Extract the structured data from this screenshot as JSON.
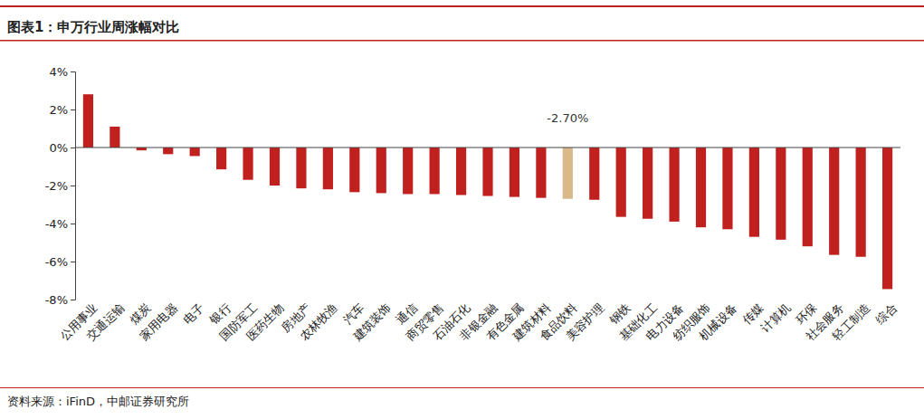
{
  "chart_data": {
    "type": "bar",
    "title": "图表1：申万行业周涨幅对比",
    "source": "资料来源：iFinD，中邮证券研究所",
    "categories": [
      "公用事业",
      "交通运输",
      "煤炭",
      "家用电器",
      "电子",
      "银行",
      "国防军工",
      "医药生物",
      "房地产",
      "农林牧渔",
      "汽车",
      "建筑装饰",
      "通信",
      "商贸零售",
      "石油石化",
      "非银金融",
      "有色金属",
      "建筑材料",
      "食品饮料",
      "美容护理",
      "钢铁",
      "基础化工",
      "电力设备",
      "纺织服饰",
      "机械设备",
      "传媒",
      "计算机",
      "环保",
      "社会服务",
      "轻工制造",
      "综合"
    ],
    "values": [
      2.8,
      1.1,
      -0.15,
      -0.35,
      -0.45,
      -1.15,
      -1.7,
      -2.0,
      -2.15,
      -2.2,
      -2.35,
      -2.4,
      -2.45,
      -2.45,
      -2.5,
      -2.55,
      -2.6,
      -2.65,
      -2.7,
      -2.75,
      -3.65,
      -3.75,
      -3.9,
      -4.2,
      -4.3,
      -4.7,
      -4.85,
      -5.2,
      -5.65,
      -5.75,
      -7.45
    ],
    "colors": [
      "#C0201E",
      "#C0201E",
      "#C0201E",
      "#C0201E",
      "#C0201E",
      "#C0201E",
      "#C0201E",
      "#C0201E",
      "#C0201E",
      "#C0201E",
      "#C0201E",
      "#C0201E",
      "#C0201E",
      "#C0201E",
      "#C0201E",
      "#C0201E",
      "#C0201E",
      "#C0201E",
      "#D9B88A",
      "#C0201E",
      "#C0201E",
      "#C0201E",
      "#C0201E",
      "#C0201E",
      "#C0201E",
      "#C0201E",
      "#C0201E",
      "#C0201E",
      "#C0201E",
      "#C0201E",
      "#C0201E"
    ],
    "annotations": [
      {
        "text": "-2.70%",
        "category": "食品饮料"
      }
    ],
    "ylim": [
      -8,
      4
    ],
    "yticks": [
      {
        "value": -8,
        "label": "-8%"
      },
      {
        "value": -6,
        "label": "-6%"
      },
      {
        "value": -4,
        "label": "-4%"
      },
      {
        "value": -2,
        "label": "-2%"
      },
      {
        "value": 0,
        "label": "0%"
      },
      {
        "value": 2,
        "label": "2%"
      },
      {
        "value": 4,
        "label": "4%"
      }
    ],
    "grid": false
  }
}
